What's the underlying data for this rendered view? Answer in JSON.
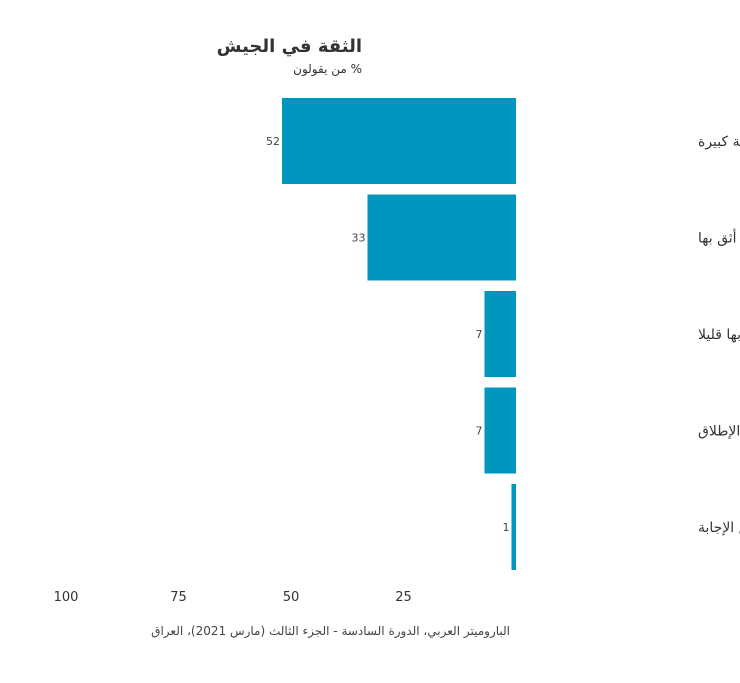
{
  "chart_data": {
    "type": "bar",
    "orientation": "horizontal",
    "title": "الثقة في الجيش",
    "subtitle": "% من يقولون",
    "categories": [
      "أثق بها إلى درجة كبيرة",
      "أثق بها",
      "أثق بها قليلا",
      "لا أثق بها على الإطلاق",
      "لا أعرف/رفض الإجابة"
    ],
    "values": [
      52,
      33,
      7,
      7,
      1
    ],
    "xticks": [
      100,
      75,
      50,
      25
    ],
    "xlim": [
      0,
      100
    ],
    "x_reversed": true,
    "grid": false,
    "bar_color": "#0096bd",
    "source": "الباروميتر العربي، الدورة السادسة - الجزء الثالث (مارس 2021)، العراق"
  }
}
